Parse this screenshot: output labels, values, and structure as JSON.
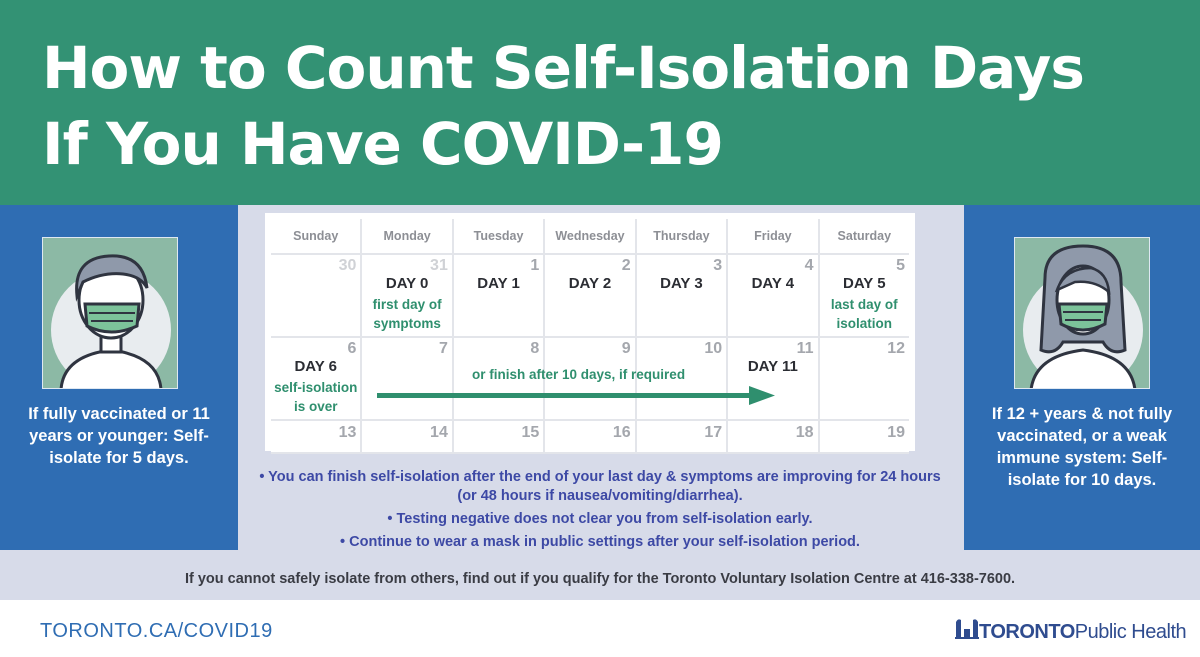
{
  "title": {
    "line1": "How to Count Self-Isolation Days",
    "line2": "If You Have COVID-19"
  },
  "left_panel": {
    "text": "If fully vaccinated or 11 years or younger: Self-isolate for 5 days."
  },
  "right_panel": {
    "text": "If 12 + years & not fully vaccinated, or a weak immune system: Self-isolate for 10 days."
  },
  "calendar": {
    "day_names": [
      "Sunday",
      "Monday",
      "Tuesday",
      "Wednesday",
      "Thursday",
      "Friday",
      "Saturday"
    ],
    "week1": [
      {
        "num": "30",
        "label": "",
        "note": ""
      },
      {
        "num": "31",
        "label": "DAY 0",
        "note": "first day of symptoms"
      },
      {
        "num": "1",
        "label": "DAY 1",
        "note": ""
      },
      {
        "num": "2",
        "label": "DAY 2",
        "note": ""
      },
      {
        "num": "3",
        "label": "DAY 3",
        "note": ""
      },
      {
        "num": "4",
        "label": "DAY 4",
        "note": ""
      },
      {
        "num": "5",
        "label": "DAY 5",
        "note": "last day of isolation"
      }
    ],
    "week2": [
      {
        "num": "6",
        "label": "DAY 6",
        "note": "self-isolation is over"
      },
      {
        "num": "7",
        "label": "",
        "note": ""
      },
      {
        "num": "8",
        "label": "",
        "note": ""
      },
      {
        "num": "9",
        "label": "",
        "note": ""
      },
      {
        "num": "10",
        "label": "",
        "note": ""
      },
      {
        "num": "11",
        "label": "DAY 11",
        "note": ""
      },
      {
        "num": "12",
        "label": "",
        "note": ""
      }
    ],
    "week3": [
      "13",
      "14",
      "15",
      "16",
      "17",
      "18",
      "19"
    ],
    "arrow_caption": "or finish after 10 days, if required"
  },
  "bullets": [
    "• You can finish self-isolation after the end of your last day & symptoms are improving for 24 hours (or 48 hours if nausea/vomiting/diarrhea).",
    "• Testing negative does not clear you from self-isolation early.",
    "• Continue to wear a mask in public settings after your self-isolation period."
  ],
  "footer_note": "If you cannot safely isolate from others, find out if you qualify for the Toronto Voluntary Isolation Centre at 416-338-7600.",
  "url": "TORONTO.CA/COVID19",
  "logo": {
    "strong": "TORONTO",
    "light": "Public Health"
  },
  "colors": {
    "header_green": "#339274",
    "side_blue": "#2f6db3",
    "band": "#d7dbe9",
    "note_green": "#2f8f6e",
    "bullet_blue": "#3d49a5"
  },
  "icons": [
    "person-mask-icon",
    "woman-mask-icon",
    "arrow-right-icon",
    "city-hall-icon"
  ]
}
